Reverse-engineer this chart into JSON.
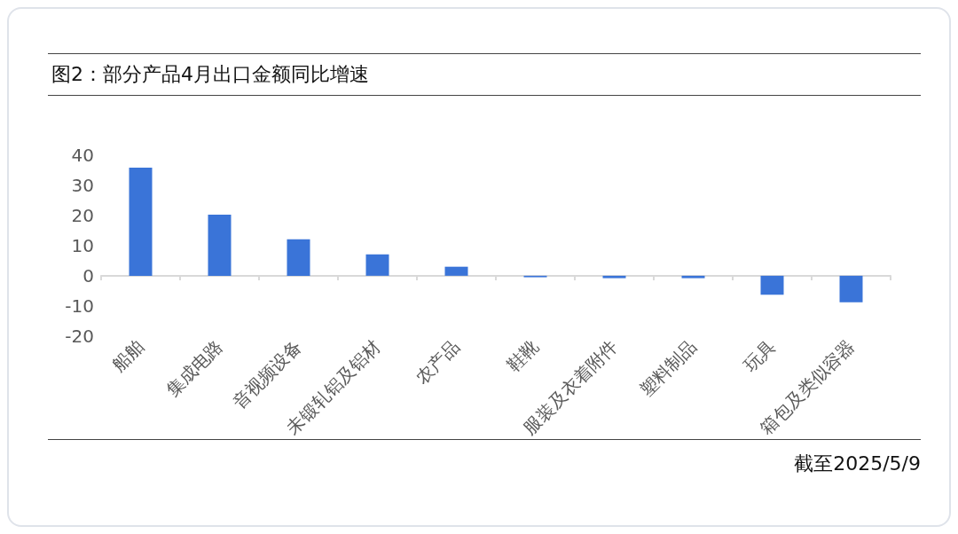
{
  "chart_data": {
    "type": "bar",
    "title": "图2：部分产品4月出口金额同比增速",
    "categories": [
      "船舶",
      "集成电路",
      "音视频设备",
      "未锻轧铝及铝材",
      "农产品",
      "鞋靴",
      "服装及衣着附件",
      "塑料制品",
      "玩具",
      "箱包及类似容器"
    ],
    "values": [
      35.9,
      20.3,
      12.1,
      7.1,
      3.0,
      -0.5,
      -0.8,
      -0.8,
      -6.3,
      -8.8
    ],
    "color": "#3a74d8",
    "ylim": [
      -20,
      40
    ],
    "yticks": [
      -20,
      -10,
      0,
      10,
      20,
      30,
      40
    ],
    "annotations": [
      "截至2025/5/9"
    ]
  }
}
